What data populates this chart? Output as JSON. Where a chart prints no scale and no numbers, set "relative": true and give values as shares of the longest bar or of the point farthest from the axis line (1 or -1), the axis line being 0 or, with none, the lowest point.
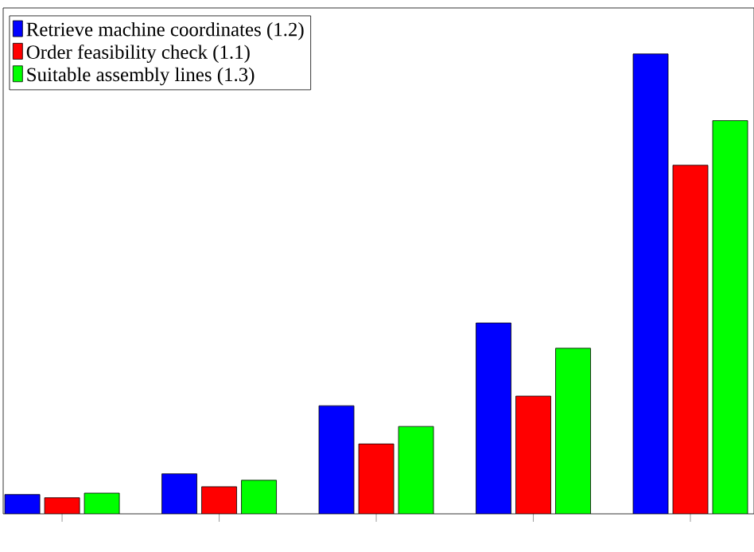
{
  "chart_data": {
    "type": "bar",
    "relative": true,
    "categories": [
      null,
      null,
      null,
      null,
      null
    ],
    "series": [
      {
        "name": "Retrieve machine coordinates (1.2)",
        "color": "#0000ff",
        "values": [
          0.042,
          0.087,
          0.235,
          0.415,
          1
        ]
      },
      {
        "name": "Order feasibility check (1.1)",
        "color": "#ff0000",
        "values": [
          0.035,
          0.059,
          0.152,
          0.256,
          0.758
        ]
      },
      {
        "name": "Suitable assembly lines (1.3)",
        "color": "#00ff00",
        "values": [
          0.045,
          0.073,
          0.19,
          0.36,
          0.855
        ]
      }
    ],
    "legend": "top left"
  }
}
